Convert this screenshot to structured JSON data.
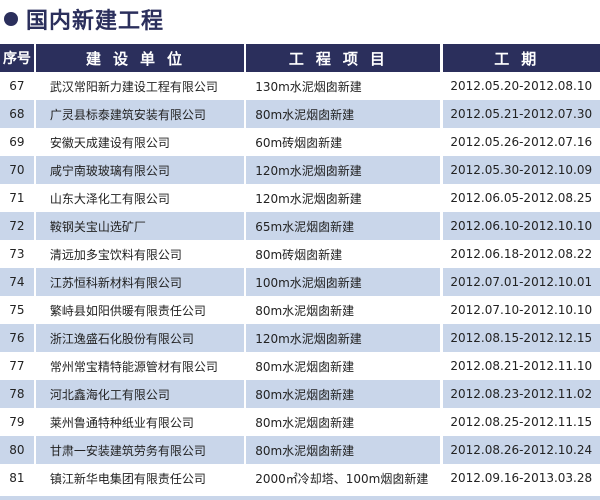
{
  "title": "国内新建工程",
  "headers": [
    "序号",
    "建设单位",
    "工程项目",
    "工期"
  ],
  "rows": [
    [
      "67",
      "武汉常阳新力建设工程有限公司",
      "130m水泥烟囱新建",
      "2012.05.20-2012.08.10"
    ],
    [
      "68",
      "广灵县标泰建筑安装有限公司",
      "80m水泥烟囱新建",
      "2012.05.21-2012.07.30"
    ],
    [
      "69",
      "安徽天成建设有限公司",
      "60m砖烟囱新建",
      "2012.05.26-2012.07.16"
    ],
    [
      "70",
      "咸宁南玻玻璃有限公司",
      "120m水泥烟囱新建",
      "2012.05.30-2012.10.09"
    ],
    [
      "71",
      "山东大泽化工有限公司",
      "120m水泥烟囱新建",
      "2012.06.05-2012.08.25"
    ],
    [
      "72",
      "鞍钢关宝山选矿厂",
      "65m水泥烟囱新建",
      "2012.06.10-2012.10.10"
    ],
    [
      "73",
      "清远加多宝饮料有限公司",
      "80m砖烟囱新建",
      "2012.06.18-2012.08.22"
    ],
    [
      "74",
      "江苏恒科新材料有限公司",
      "100m水泥烟囱新建",
      "2012.07.01-2012.10.01"
    ],
    [
      "75",
      "繁峙县如阳供暖有限责任公司",
      "80m水泥烟囱新建",
      "2012.07.10-2012.10.10"
    ],
    [
      "76",
      "浙江逸盛石化股份有限公司",
      "120m水泥烟囱新建",
      "2012.08.15-2012.12.15"
    ],
    [
      "77",
      "常州常宝精特能源管材有限公司",
      "80m水泥烟囱新建",
      "2012.08.21-2012.11.10"
    ],
    [
      "78",
      "河北鑫海化工有限公司",
      "80m水泥烟囱新建",
      "2012.08.23-2012.11.02"
    ],
    [
      "79",
      "莱州鲁通特种纸业有限公司",
      "80m水泥烟囱新建",
      "2012.08.25-2012.11.15"
    ],
    [
      "80",
      "甘肃一安装建筑劳务有限公司",
      "80m水泥烟囱新建",
      "2012.08.26-2012.10.24"
    ],
    [
      "81",
      "镇江新华电集团有限责任公司",
      "2000㎡冷却塔、100m烟囱新建",
      "2012.09.16-2013.03.28"
    ]
  ],
  "colors": {
    "header": "#2b2f5c",
    "alt_row": "#c9d6ea"
  }
}
